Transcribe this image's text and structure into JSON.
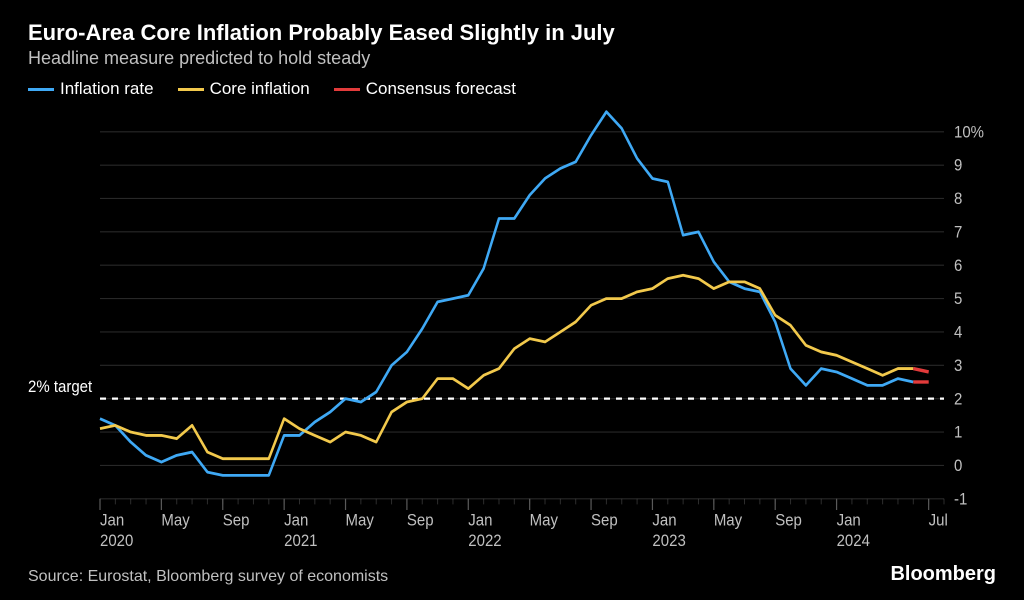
{
  "title": "Euro-Area Core Inflation Probably Eased Slightly in July",
  "subtitle": "Headline measure predicted to hold steady",
  "source": "Source: Eurostat, Bloomberg survey of economists",
  "brand": "Bloomberg",
  "target_label": "2% target",
  "legend": {
    "inflation": "Inflation rate",
    "core": "Core inflation",
    "forecast": "Consensus forecast"
  },
  "chart": {
    "type": "line",
    "background_color": "#000000",
    "text_color": "#c0c0c0",
    "title_color": "#ffffff",
    "grid_color": "#5a5a5a",
    "gridline_width": 1,
    "series_colors": {
      "inflation": "#3fa9f5",
      "core": "#f2c94c",
      "forecast": "#e23b3b"
    },
    "line_width": 2.5,
    "ylim": [
      -1,
      10.6
    ],
    "yticks": [
      -1,
      0,
      1,
      2,
      3,
      4,
      5,
      6,
      7,
      8,
      9,
      10
    ],
    "ytick_labels": [
      "-1",
      "0",
      "1",
      "2",
      "3",
      "4",
      "5",
      "6",
      "7",
      "8",
      "9",
      "10%"
    ],
    "target_value": 2,
    "target_dash": "6,6",
    "x_start": 0,
    "x_end": 55,
    "xticks_major": [
      {
        "idx": 0,
        "top": "Jan",
        "bottom": "2020"
      },
      {
        "idx": 4,
        "top": "May",
        "bottom": ""
      },
      {
        "idx": 8,
        "top": "Sep",
        "bottom": ""
      },
      {
        "idx": 12,
        "top": "Jan",
        "bottom": "2021"
      },
      {
        "idx": 16,
        "top": "May",
        "bottom": ""
      },
      {
        "idx": 20,
        "top": "Sep",
        "bottom": ""
      },
      {
        "idx": 24,
        "top": "Jan",
        "bottom": "2022"
      },
      {
        "idx": 28,
        "top": "May",
        "bottom": ""
      },
      {
        "idx": 32,
        "top": "Sep",
        "bottom": ""
      },
      {
        "idx": 36,
        "top": "Jan",
        "bottom": "2023"
      },
      {
        "idx": 40,
        "top": "May",
        "bottom": ""
      },
      {
        "idx": 44,
        "top": "Sep",
        "bottom": ""
      },
      {
        "idx": 48,
        "top": "Jan",
        "bottom": "2024"
      },
      {
        "idx": 54,
        "top": "Jul",
        "bottom": ""
      }
    ],
    "series": {
      "inflation": [
        1.4,
        1.2,
        0.7,
        0.3,
        0.1,
        0.3,
        0.4,
        -0.2,
        -0.3,
        -0.3,
        -0.3,
        -0.3,
        0.9,
        0.9,
        1.3,
        1.6,
        2.0,
        1.9,
        2.2,
        3.0,
        3.4,
        4.1,
        4.9,
        5.0,
        5.1,
        5.9,
        7.4,
        7.4,
        8.1,
        8.6,
        8.9,
        9.1,
        9.9,
        10.6,
        10.1,
        9.2,
        8.6,
        8.5,
        6.9,
        7.0,
        6.1,
        5.5,
        5.3,
        5.2,
        4.3,
        2.9,
        2.4,
        2.9,
        2.8,
        2.6,
        2.4,
        2.4,
        2.6,
        2.5
      ],
      "core": [
        1.1,
        1.2,
        1.0,
        0.9,
        0.9,
        0.8,
        1.2,
        0.4,
        0.2,
        0.2,
        0.2,
        0.2,
        1.4,
        1.1,
        0.9,
        0.7,
        1.0,
        0.9,
        0.7,
        1.6,
        1.9,
        2.0,
        2.6,
        2.6,
        2.3,
        2.7,
        2.9,
        3.5,
        3.8,
        3.7,
        4.0,
        4.3,
        4.8,
        5.0,
        5.0,
        5.2,
        5.3,
        5.6,
        5.7,
        5.6,
        5.3,
        5.5,
        5.5,
        5.3,
        4.5,
        4.2,
        3.6,
        3.4,
        3.3,
        3.1,
        2.9,
        2.7,
        2.9,
        2.9
      ],
      "forecast_inflation": {
        "start_idx": 53,
        "values": [
          2.5,
          2.5
        ]
      },
      "forecast_core": {
        "start_idx": 53,
        "values": [
          2.9,
          2.8
        ]
      }
    }
  }
}
